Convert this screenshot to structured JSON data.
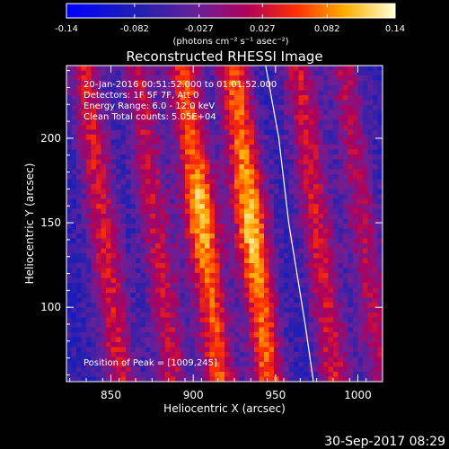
{
  "colorbar": {
    "ticks": [
      "-0.14",
      "-0.082",
      "-0.027",
      "0.027",
      "0.082",
      "0.14"
    ],
    "tick_values": [
      -0.14,
      -0.082,
      -0.027,
      0.027,
      0.082,
      0.14
    ],
    "unit_label": "(photons cm⁻² s⁻¹ asec⁻²)",
    "range": [
      -0.14,
      0.14
    ]
  },
  "chart_data": {
    "type": "heatmap",
    "title": "Reconstructed RHESSI Image",
    "xlabel": "Heliocentric X (arcsec)",
    "ylabel": "Heliocentric Y (arcsec)",
    "xlim": [
      823,
      1015
    ],
    "ylim": [
      56,
      243
    ],
    "xticks": [
      850,
      900,
      950,
      1000
    ],
    "yticks": [
      100,
      150,
      200
    ],
    "info_lines": [
      "20-Jan-2016 00:51:52.000 to 01:01:52.000",
      "Detectors: 1F 5F 7F, Att 0",
      "Energy Range: 6.0 - 12.0 keV",
      "Clean     Total counts: 5.05E+04"
    ],
    "peak_label": "Position of Peak = [1009,245]",
    "limb_curve": [
      [
        944,
        243
      ],
      [
        952,
        200
      ],
      [
        958,
        150
      ],
      [
        963,
        120
      ],
      [
        968,
        90
      ],
      [
        973,
        56
      ]
    ],
    "stripes": [
      {
        "x": 845,
        "amp": 0.1
      },
      {
        "x": 877,
        "amp": 0.09
      },
      {
        "x": 905,
        "amp": 0.13
      },
      {
        "x": 935,
        "amp": 0.14
      },
      {
        "x": 975,
        "amp": 0.1
      },
      {
        "x": 1003,
        "amp": 0.08
      }
    ]
  },
  "timestamp": "30-Sep-2017 08:29"
}
